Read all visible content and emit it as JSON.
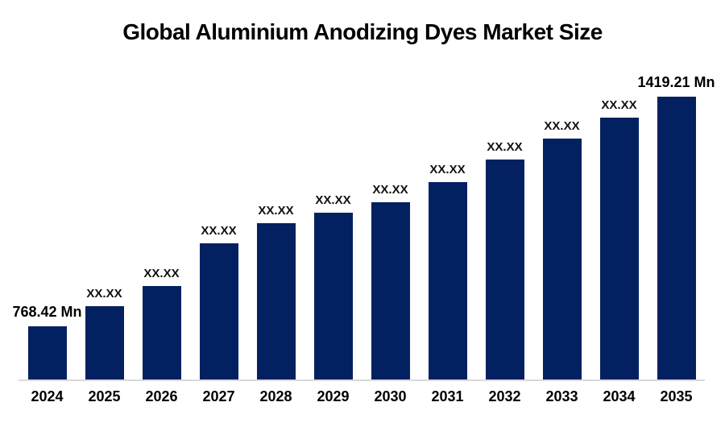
{
  "colors": {
    "bar": "#032161",
    "axis_line": "#d9d9d9",
    "text": "#000000",
    "background": "#ffffff"
  },
  "chart_data": {
    "type": "bar",
    "title": "Global Aluminium Anodizing Dyes Market Size",
    "unit": "Mn",
    "categories": [
      "2024",
      "2025",
      "2026",
      "2027",
      "2028",
      "2029",
      "2030",
      "2031",
      "2032",
      "2033",
      "2034",
      "2035"
    ],
    "bar_labels": [
      "768.42 Mn",
      "XX.XX",
      "XX.XX",
      "XX.XX",
      "XX.XX",
      "XX.XX",
      "XX.XX",
      "XX.XX",
      "XX.XX",
      "XX.XX",
      "XX.XX",
      "1419.21 Mn"
    ],
    "values_mn": [
      768.42,
      null,
      null,
      null,
      null,
      null,
      null,
      null,
      null,
      null,
      null,
      1419.21
    ],
    "values_estimated_mn": [
      768.42,
      825,
      882,
      1004,
      1061,
      1090,
      1120,
      1177,
      1241,
      1300,
      1360,
      1419.21
    ],
    "xlabel": "",
    "ylabel": "",
    "grid": false,
    "legend": false,
    "y_axis_visible": false,
    "x_axis_visible": true
  }
}
